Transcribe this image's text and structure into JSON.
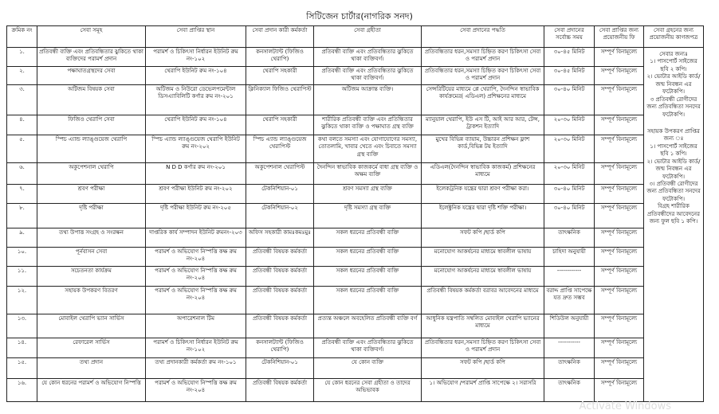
{
  "title": "সিটিজেন চার্টার(নাগরিক সনদ)",
  "headers": [
    "ক্রমিক নং",
    "সেবা সমূহ",
    "সেবা প্রাপ্তির স্থান",
    "সেবা প্রদান কারী কর্মকর্তা",
    "সেবা গ্রহীতা",
    "সেবা প্রদানের পদ্ধতি",
    "সেবা প্রদানের সর্বোচ্চ সময়",
    "সেবা প্রাপ্তির জন্য প্রয়োজনীয় ফি",
    "সেবা গ্রহনের জন্য প্রয়োজনীয় কাগজপত্র"
  ],
  "rows": [
    {
      "no": "১.",
      "service": "প্রতিবন্ধী ব্যক্তি এবং প্রতিবন্ধিতার ঝুকিতে থাকা ব্যক্তিদের পরামর্শ প্রদান",
      "place": "পরামর্শ ও চিকিৎসা নির্ধারন ইউনিট রুম নং-১০২",
      "officer": "কনসালট্যান্ট (ফিজিও থেরাপি)",
      "recipient": "প্রতিবন্ধী ব্যক্তি এবং প্রতিবন্ধিতার ঝুকিতে থাকা ব্যক্তিবর্গ।",
      "method": "প্রতিবন্ধিতার ধরন,সমস্যা চিহ্নিত করণ চিকিৎসা সেবা ও পরামর্শ প্রদান",
      "time": "৩০-৪৫ মিনিট",
      "fee": "সম্পূর্ণ বিনামূল্যে"
    },
    {
      "no": "২.",
      "service": "পক্ষাঘাতগ্রস্থদের সেবা",
      "place": "থেরাপি ইউনিট রুম নং-১০৪",
      "officer": "থেরাপি সহকারী",
      "recipient": "প্রতিবন্ধী ব্যক্তি এবং প্রতিবন্ধিতার ঝুকিতে থাকা ব্যক্তিবর্গ।",
      "method": "প্রতিবন্ধিতার ধরন,সমস্যা চিহ্নিত করণ চিকিৎসা সেবা ও পরামর্শ প্রদান",
      "time": "৩০-৪৫ মিনিট",
      "fee": "সম্পূর্ণ বিনামূল্যে"
    },
    {
      "no": "৩.",
      "service": "অটিজম বিষয়ক সেবা",
      "place": "অটিজম ও নিউরো ডেভেলপমেন্টাল ডিসএ্যাবিলিটি কর্ণার রুম নং-২০১",
      "officer": "ক্লিনিক্যাল ফিজিও থেরাপিস্ট",
      "recipient": "অটিজম আক্রান্ত ব্যক্তি।",
      "method": "সেন্সরিটিয়ের মাধ্যমে প্লে থেরাপি, দৈনন্দিন স্বাভাবিক কার্যক্রমের( এডিএল) প্রশিক্ষনের মাধ্যমে",
      "time": "৩০-৪০ মিনিট",
      "fee": "সম্পূর্ণ বিনামূল্যে"
    },
    {
      "no": "৪.",
      "service": "ফিজিও থেরাপি সেবা",
      "place": "থেরাপি ইউনিট রুম নং-১০৪",
      "officer": "থেরাপি সহকারী",
      "recipient": "শারীরিক প্রতিবন্ধী ব্যক্তি এবং প্রতিন্ধিতার ঝুকিতে থাকা ব্যক্তি ও পক্ষাঘাত গ্রস্থ ব্যক্তি",
      "method": "ম্যানুয়াল থেরাপি, ইউ এস টি, আই আর আর, টেন্স, ট্রাকশন ইত্যাদি",
      "time": "২০-৩০ মিনিট",
      "fee": "সম্পূর্ণ বিনামূল্যে"
    },
    {
      "no": "৫.",
      "service": "স্পিচ এ্যান্ড ল্যাঙ্গুয়েজ থেরাপি",
      "place": "স্পিচ এ্যান্ড ল্যাঙ্গুয়েজ থেরাপি ইউনিট রুম নং-২০২",
      "officer": "স্পিচ এ্যান্ড ল্যাঙ্গুয়েজ থেরাপিস্ট",
      "recipient": "কথা বলতে সমস্যা এবং যোগাযোগের সমস্যা, তোতলামি, খাবার খেতে এবং চিবাতে সমস্যা গ্রস্থ ব্যক্তি",
      "method": "মুখের বিভিন্ন ব্যায়াম, উচ্চারন প্রশিক্ষন ফ্লাশ কার্ড,বিভিন্ন টয় ইত্যাদি",
      "time": "২০-৩০ মিনিট",
      "fee": "সম্পূর্ণ বিনামূল্যে"
    },
    {
      "no": "৬.",
      "service": "অকুপেশনাল থেরাপি",
      "place": "N D D কর্ণার রুম নং-২০১",
      "officer": "অকুপেশনাল থেরাপিস্ট",
      "recipient": "দৈনন্দিন স্বাভাবিক কাজকর্মে বাধা গ্রস্থ ব্যক্তি ও অক্ষম ব্যক্তি",
      "method": "এডিএল(দৈনন্দিন স্বাভাবিক কাজকর্ম) প্রশিক্ষনের মাধ্যমে",
      "time": "২০-৩০ মিনিট",
      "fee": "সম্পূর্ণ বিনামূল্যে"
    },
    {
      "no": "৭.",
      "service": "শ্রবণ পরীক্ষা",
      "place": "শ্রবণ পরীক্ষা ইউনিট রুম নং-২০২",
      "officer": "টেকনিশিয়ান-০১",
      "recipient": "শ্রবণ সমস্যা গ্রস্থ ব্যক্তি",
      "method": "ইলেকট্রনিক যন্ত্রের দ্বারা শ্রবণ পরীক্ষা করা।",
      "time": "৩০-৪০ মিনিট",
      "fee": "সম্পূর্ণ বিনামূল্যে"
    },
    {
      "no": "৮.",
      "service": "দৃষ্টি পরীক্ষা",
      "place": "দৃষ্টি পরীক্ষা ইউনিট রুম নং-২০৫",
      "officer": "টেকনিশিয়ান-০২",
      "recipient": "দৃষ্টি সমস্যা গ্রস্থ ব্যক্তি",
      "method": "ইলেক্ট্রনিক যন্ত্রের দ্বারা দৃষ্টি শক্তি পরীক্ষা।",
      "time": "৩০-৪০ মিনিট",
      "fee": "সম্পূর্ণ বিনামূল্যে"
    },
    {
      "no": "৯.",
      "service": "তথ্য উপাত্ত সংগ্রহ ও সংরক্ষন",
      "place": "দাপ্তরিক কার্য সম্পাদন ইউনিট রুমনং-২০৩",
      "officer": "অফিস সহকারী কামঃকমঃমুঃ",
      "recipient": "সকল ধরনের প্রতিবন্ধী ব্যক্তি",
      "method": "সফট কপি /হার্ড কপি",
      "time": "তাৎক্ষনিক",
      "fee": "সম্পূর্ণ বিনামূল্যে"
    },
    {
      "no": "১০.",
      "service": "পূর্নবাসন সেবা",
      "place": "পরামর্শ ও অভিযোগ নিস্পত্তি কক্ষ রুম নং-২০৪",
      "officer": "প্রতিবন্ধী বিষয়ক কর্মকর্তা",
      "recipient": "সকল ধরনের প্রতিবন্ধী ব্যক্তি",
      "method": "মনোযোগ আকর্ষনের মাধ্যমে স্বাবলীল ভাষায়",
      "time": "চাহিদা অনুযায়ী",
      "fee": "সম্পূর্ণ বিনামূল্যে"
    },
    {
      "no": "১১.",
      "service": "সচেতনতা কার্যক্রম",
      "place": "পরামর্শ ও অভিযোগ নিস্পত্তি কক্ষ রুম নং-২০৪",
      "officer": "প্রতিবন্ধী বিষয়ক কর্মকর্তা",
      "recipient": "সকল ধরনের প্রতিবন্ধী ব্যক্তি",
      "method": "মনোযোগ আকর্ষনের মাধ্যমে স্বাবলীল ভাষায়",
      "time": "------------",
      "fee": "সম্পূর্ণ বিনামূল্যে"
    },
    {
      "no": "১২.",
      "service": "সহায়ক উপকরণ বিতরণ",
      "place": "পরামর্শ ও অভিযোগ নিস্পত্তি কক্ষ রুম নং-২০৪",
      "officer": "প্রতিবন্ধী বিষয়ক কর্মকর্তা",
      "recipient": "সকল ধরনের প্রতিবন্ধী ব্যক্তি",
      "method": "প্রতিবন্ধী বিষয়ক কর্মকর্তা বরাবর আবেদনের মাধ্যমে",
      "time": "বরাদ্দ প্রাপ্তি সাপেক্ষে যত দ্রুত সম্ভব",
      "fee": "সম্পূর্ণ বিনামূল্যে"
    },
    {
      "no": "১৩.",
      "service": "মোবাইল থেরাপি ভ্যান সার্ভিস",
      "place": "অপারেশনাল টিম",
      "officer": "প্রতিবন্ধী বিষয়ক কর্মকর্তা",
      "recipient": "প্রত্যন্ত অঞ্চলে অবহেলিত প্রতিবন্ধী ব্যক্তি বর্গ",
      "method": "আধুনিক যন্ত্রপাতি সম্বলিত মোবাইল থেরাপি ভ্যানের মাধ্যমে",
      "time": "শিডিউল অনুযায়ী",
      "fee": "সম্পূর্ণ বিনামূল্যে"
    },
    {
      "no": "১৪.",
      "service": "রেফারেল সার্ভিস",
      "place": "পরামর্শ ও চিকিৎসা নির্ধারন ইউনিট রুম নং-১০২",
      "officer": "কনসালট্যান্ট (ফিজিও থেরাপি)",
      "recipient": "প্রতিবন্ধী ব্যক্তি এবং প্রতিবন্ধিতার ঝুকিতে থাকা ব্যক্তিবর্গ।",
      "method": "প্রতিবন্ধিতার ধরন,সমস্যা চিহ্নিত করণ চিকিৎসা সেবা ও পরামর্শ প্রদান",
      "time": "-----------",
      "fee": "সম্পূর্ণ বিনামূল্যে"
    },
    {
      "no": "১৫.",
      "service": "তথ্য প্রদান",
      "place": "তথ্য প্রদানকারী কর্মকর্তা রুম নং-১০১",
      "officer": "টেকনিশিয়ান-০১",
      "recipient": "যে কোন ব্যক্তি",
      "method": "সফট কপি /হার্ড কপি",
      "time": "তাৎক্ষনিক",
      "fee": "সম্পূর্ণ বিনামূল্যে"
    },
    {
      "no": "১৬.",
      "service": "যে কোন ধরনের পরামর্শ ও অভিযোগ নিস্পত্তি",
      "place": "পরামর্শ ও অভিযোগ নিস্পত্তি কক্ষ রুম নং-২০৪",
      "officer": "প্রতিবন্ধী বিষয়ক কর্মকর্তা",
      "recipient": "যে কোন ধরনের সেবা গ্রহীতা ও তাদের অভিভাবক",
      "method": "১। অভিযোগ /পরামর্শ প্রাপ্তি সাপেক্ষে ২। সরাসরি",
      "time": "তাৎক্ষনিক",
      "fee": "সম্পূর্ণ বিনামূল্যে"
    }
  ],
  "documents": [
    "সেবার জন্যঃ",
    "১। পাসপোর্ট সাইজের ছবি ২ কপি।",
    "২। ভোটার আইডি কার্ড/জন্ম নিবন্ধন এর ফটোকপি।",
    "৩ প্রতিবন্ধী রোগীদের জন্য প্রতিবন্ধিতা সনদের ফটোকপি।",
    "সহায়ক উপকরণ প্রাপ্তির জন্য ঃ",
    "১। পাসপোর্ট সাইজের ছবি ১ কপি।",
    "২। ভোটার আইডি কার্ড/জন্ম নিবন্ধন এর ফটোকপি।",
    "৩। প্রতিবন্ধী রোগীদের জন্য প্রতিবন্ধিতা সনদের ফটোকপি।",
    "বিগ্রহ শারীরিক প্রতিবন্ধীদের আবেদনের জন্য ফুল ছবি ১ কপি।"
  ],
  "watermark": "Activate Windows"
}
